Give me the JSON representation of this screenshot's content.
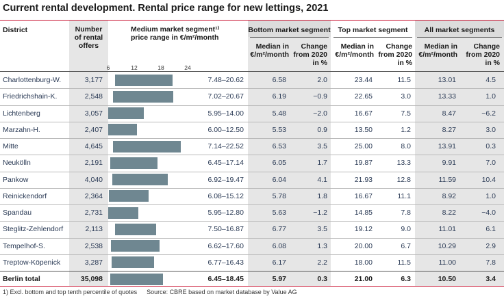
{
  "title": "Current rental development. Rental price range for new lettings, 2021",
  "header": {
    "district": "District",
    "offers_line1": "Number",
    "offers_line2": "of rental",
    "offers_line3": "offers",
    "medium_line1": "Medium market segment¹⁾",
    "medium_line2": "price range in €/m²/month",
    "bottom_group": "Bottom market segment",
    "top_group": "Top market segment",
    "all_group": "All market segments",
    "median_line1": "Median in",
    "median_line2": "€/m²/month",
    "change_line1": "Change",
    "change_line2": "from 2020",
    "change_line3": "in %"
  },
  "axis_ticks": [
    "6",
    "12",
    "18",
    "24"
  ],
  "rows": [
    {
      "district": "Charlottenburg-W.",
      "offers": "3,177",
      "low": 7.48,
      "high": 20.62,
      "range": "7.48–20.62",
      "b_med": "6.58",
      "b_chg": "2.0",
      "t_med": "23.44",
      "t_chg": "11.5",
      "a_med": "13.01",
      "a_chg": "4.5"
    },
    {
      "district": "Friedrichshain-K.",
      "offers": "2,548",
      "low": 7.02,
      "high": 20.67,
      "range": "7.02–20.67",
      "b_med": "6.19",
      "b_chg": "−0.9",
      "t_med": "22.65",
      "t_chg": "3.0",
      "a_med": "13.33",
      "a_chg": "1.0"
    },
    {
      "district": "Lichtenberg",
      "offers": "3,057",
      "low": 5.95,
      "high": 14.0,
      "range": "5.95–14.00",
      "b_med": "5.48",
      "b_chg": "−2.0",
      "t_med": "16.67",
      "t_chg": "7.5",
      "a_med": "8.47",
      "a_chg": "−6.2"
    },
    {
      "district": "Marzahn-H.",
      "offers": "2,407",
      "low": 6.0,
      "high": 12.5,
      "range": "6.00–12.50",
      "b_med": "5.53",
      "b_chg": "0.9",
      "t_med": "13.50",
      "t_chg": "1.2",
      "a_med": "8.27",
      "a_chg": "3.0"
    },
    {
      "district": "Mitte",
      "offers": "4,645",
      "low": 7.14,
      "high": 22.52,
      "range": "7.14–22.52",
      "b_med": "6.53",
      "b_chg": "3.5",
      "t_med": "25.00",
      "t_chg": "8.0",
      "a_med": "13.91",
      "a_chg": "0.3"
    },
    {
      "district": "Neukölln",
      "offers": "2,191",
      "low": 6.45,
      "high": 17.14,
      "range": "6.45–17.14",
      "b_med": "6.05",
      "b_chg": "1.7",
      "t_med": "19.87",
      "t_chg": "13.3",
      "a_med": "9.91",
      "a_chg": "7.0"
    },
    {
      "district": "Pankow",
      "offers": "4,040",
      "low": 6.92,
      "high": 19.47,
      "range": "6.92–19.47",
      "b_med": "6.04",
      "b_chg": "4.1",
      "t_med": "21.93",
      "t_chg": "12.8",
      "a_med": "11.59",
      "a_chg": "10.4"
    },
    {
      "district": "Reinickendorf",
      "offers": "2,364",
      "low": 6.08,
      "high": 15.12,
      "range": "6.08–15.12",
      "b_med": "5.78",
      "b_chg": "1.8",
      "t_med": "16.67",
      "t_chg": "11.1",
      "a_med": "8.92",
      "a_chg": "1.0"
    },
    {
      "district": "Spandau",
      "offers": "2,731",
      "low": 5.95,
      "high": 12.8,
      "range": "5.95–12.80",
      "b_med": "5.63",
      "b_chg": "−1.2",
      "t_med": "14.85",
      "t_chg": "7.8",
      "a_med": "8.22",
      "a_chg": "−4.0"
    },
    {
      "district": "Steglitz-Zehlendorf",
      "offers": "2,113",
      "low": 7.5,
      "high": 16.87,
      "range": "7.50–16.87",
      "b_med": "6.77",
      "b_chg": "3.5",
      "t_med": "19.12",
      "t_chg": "9.0",
      "a_med": "11.01",
      "a_chg": "6.1"
    },
    {
      "district": "Tempelhof-S.",
      "offers": "2,538",
      "low": 6.62,
      "high": 17.6,
      "range": "6.62–17.60",
      "b_med": "6.08",
      "b_chg": "1.3",
      "t_med": "20.00",
      "t_chg": "6.7",
      "a_med": "10.29",
      "a_chg": "2.9"
    },
    {
      "district": "Treptow-Köpenick",
      "offers": "3,287",
      "low": 6.77,
      "high": 16.43,
      "range": "6.77–16.43",
      "b_med": "6.17",
      "b_chg": "2.2",
      "t_med": "18.00",
      "t_chg": "11.5",
      "a_med": "11.00",
      "a_chg": "7.8"
    }
  ],
  "total": {
    "district": "Berlin total",
    "offers": "35,098",
    "low": 6.45,
    "high": 18.45,
    "range": "6.45–18.45",
    "b_med": "5.97",
    "b_chg": "0.3",
    "t_med": "21.00",
    "t_chg": "6.3",
    "a_med": "10.50",
    "a_chg": "3.4"
  },
  "footnote": "1) Excl. bottom and top tenth percentile of quotes",
  "source": "Source: CBRE based on market database by Value AG",
  "colors": {
    "accent": "#c8102e",
    "bar": "#6f8791",
    "shade": "#e6e6e6"
  }
}
